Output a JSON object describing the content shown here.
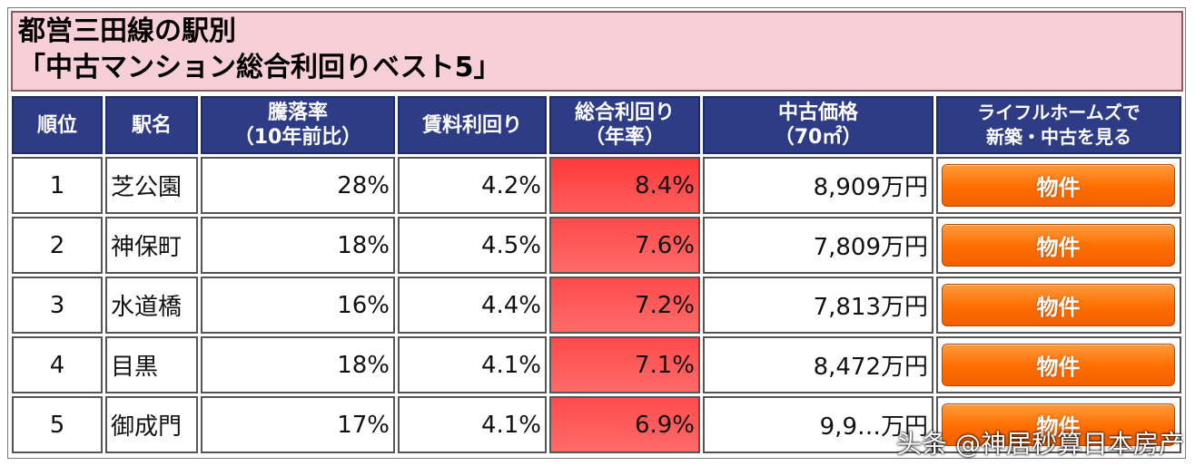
{
  "title": {
    "line1": "都営三田線の駅別",
    "line2": "「中古マンション総合利回りベスト5」"
  },
  "table": {
    "headers": [
      {
        "line1": "順位",
        "line2": ""
      },
      {
        "line1": "駅名",
        "line2": ""
      },
      {
        "line1": "騰落率",
        "line2": "（10年前比）"
      },
      {
        "line1": "賃料利回り",
        "line2": ""
      },
      {
        "line1": "総合利回り",
        "line2": "（年率）"
      },
      {
        "line1": "中古価格",
        "line2": "（70㎡）"
      },
      {
        "line1": "ライフルホームズで",
        "line2": "新築・中古を見る"
      }
    ],
    "rows": [
      {
        "rank": "1",
        "station": "芝公園",
        "change": "28%",
        "rent_yield": "4.2%",
        "total_yield": "8.4%",
        "price": "8,909万円",
        "button": "物件"
      },
      {
        "rank": "2",
        "station": "神保町",
        "change": "18%",
        "rent_yield": "4.5%",
        "total_yield": "7.6%",
        "price": "7,809万円",
        "button": "物件"
      },
      {
        "rank": "3",
        "station": "水道橋",
        "change": "16%",
        "rent_yield": "4.4%",
        "total_yield": "7.2%",
        "price": "7,813万円",
        "button": "物件"
      },
      {
        "rank": "4",
        "station": "目黒",
        "change": "18%",
        "rent_yield": "4.1%",
        "total_yield": "7.1%",
        "price": "8,472万円",
        "button": "物件"
      },
      {
        "rank": "5",
        "station": "御成門",
        "change": "17%",
        "rent_yield": "4.1%",
        "total_yield": "6.9%",
        "price": "9,9…万円",
        "button": "物件"
      }
    ]
  },
  "watermark": "头条 @神居秒算日本房产",
  "colors": {
    "title_bg": "#f7cfd6",
    "header_bg": "#2e3c86",
    "yield_highlight": "#ff4040",
    "button": "#ff6d00"
  }
}
